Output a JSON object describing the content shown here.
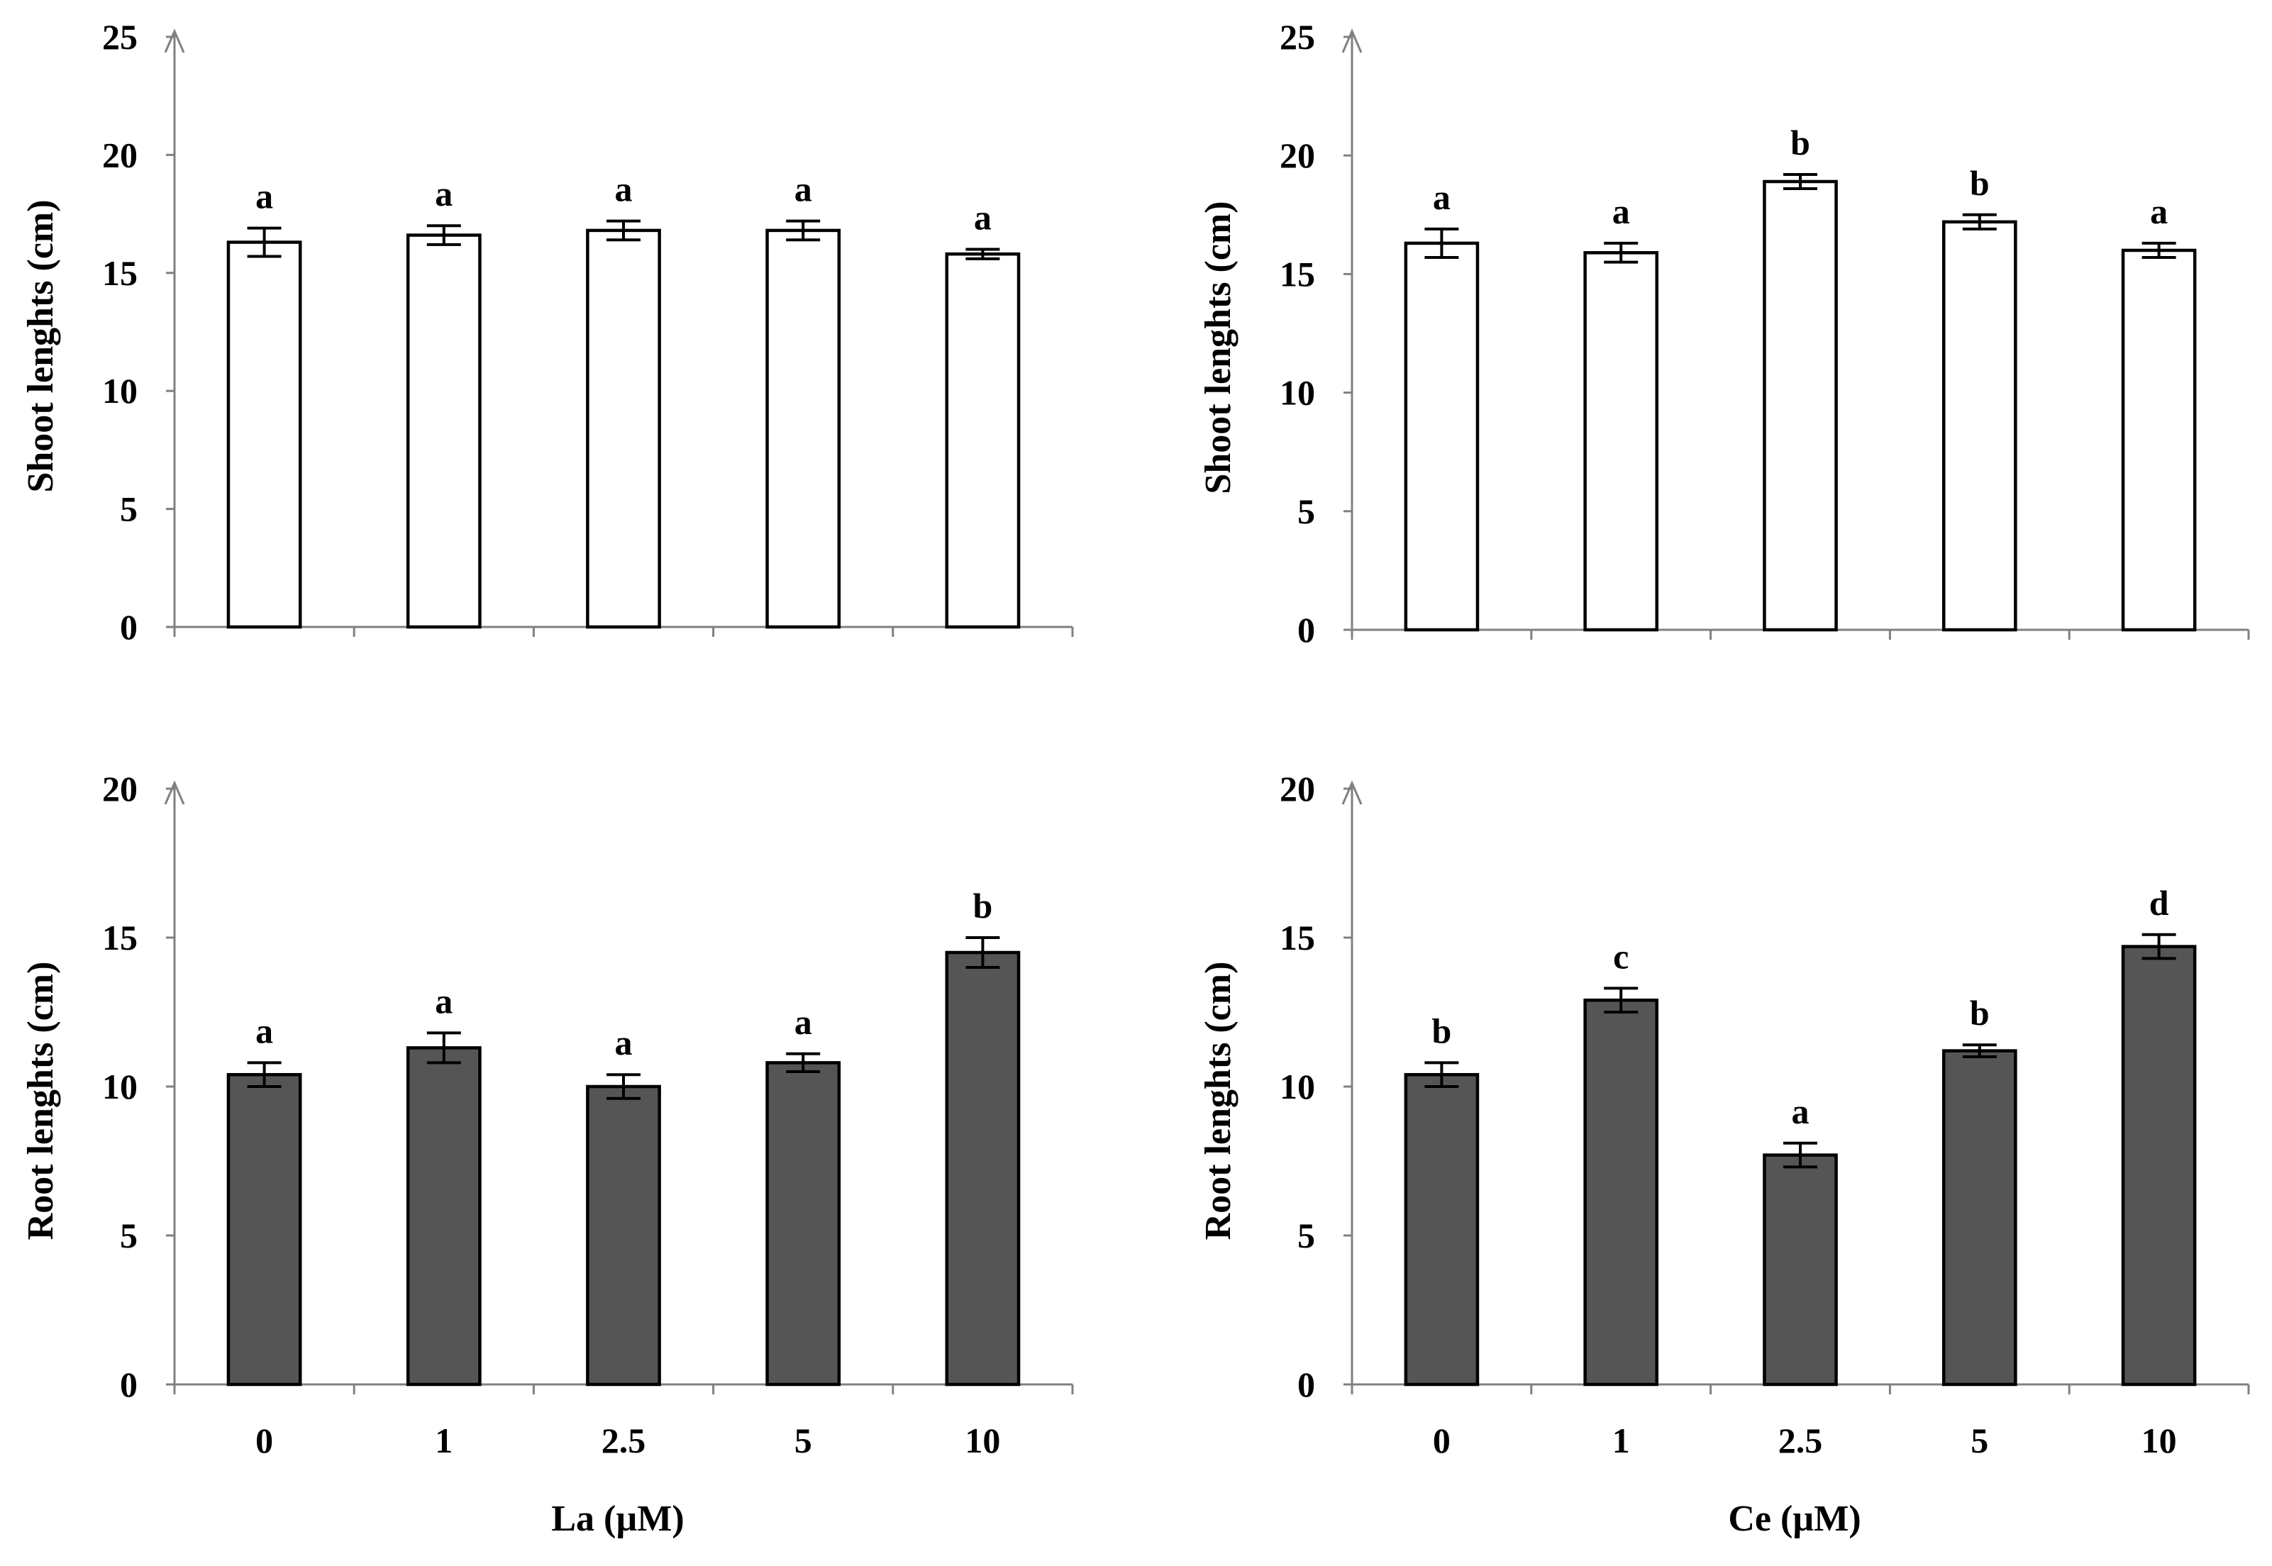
{
  "chart_data": [
    {
      "id": "la-shoot",
      "type": "bar",
      "categories": [
        "0",
        "1",
        "2.5",
        "5",
        "10"
      ],
      "values": [
        16.3,
        16.6,
        16.8,
        16.8,
        15.8
      ],
      "errors": [
        0.6,
        0.4,
        0.4,
        0.4,
        0.2
      ],
      "significance": [
        "a",
        "a",
        "a",
        "a",
        "a"
      ],
      "ylabel": "Shoot lenghts (cm)",
      "xlabel": "",
      "show_xtick_labels": false,
      "ylim": [
        0,
        25
      ],
      "yticks": [
        0,
        5,
        10,
        15,
        20,
        25
      ],
      "bar_color": "#ffffff",
      "grid": false
    },
    {
      "id": "ce-shoot",
      "type": "bar",
      "categories": [
        "0",
        "1",
        "2.5",
        "5",
        "10"
      ],
      "values": [
        16.3,
        15.9,
        18.9,
        17.2,
        16.0
      ],
      "errors": [
        0.6,
        0.4,
        0.3,
        0.3,
        0.3
      ],
      "significance": [
        "a",
        "a",
        "b",
        "b",
        "a"
      ],
      "ylabel": "Shoot lenghts (cm)",
      "xlabel": "",
      "show_xtick_labels": false,
      "ylim": [
        0,
        25
      ],
      "yticks": [
        0,
        5,
        10,
        15,
        20,
        25
      ],
      "bar_color": "#ffffff",
      "grid": false
    },
    {
      "id": "la-root",
      "type": "bar",
      "categories": [
        "0",
        "1",
        "2.5",
        "5",
        "10"
      ],
      "values": [
        10.4,
        11.3,
        10.0,
        10.8,
        14.5
      ],
      "errors": [
        0.4,
        0.5,
        0.4,
        0.3,
        0.5
      ],
      "significance": [
        "a",
        "a",
        "a",
        "a",
        "b"
      ],
      "ylabel": "Root lenghts (cm)",
      "xlabel": "La (µM)",
      "show_xtick_labels": true,
      "ylim": [
        0,
        20
      ],
      "yticks": [
        0,
        5,
        10,
        15,
        20
      ],
      "bar_color": "#555555",
      "grid": false
    },
    {
      "id": "ce-root",
      "type": "bar",
      "categories": [
        "0",
        "1",
        "2.5",
        "5",
        "10"
      ],
      "values": [
        10.4,
        12.9,
        7.7,
        11.2,
        14.7
      ],
      "errors": [
        0.4,
        0.4,
        0.4,
        0.2,
        0.4
      ],
      "significance": [
        "b",
        "c",
        "a",
        "b",
        "d"
      ],
      "ylabel": "Root lenghts (cm)",
      "xlabel": "Ce (µM)",
      "show_xtick_labels": true,
      "ylim": [
        0,
        20
      ],
      "yticks": [
        0,
        5,
        10,
        15,
        20
      ],
      "bar_color": "#555555",
      "grid": false
    }
  ]
}
